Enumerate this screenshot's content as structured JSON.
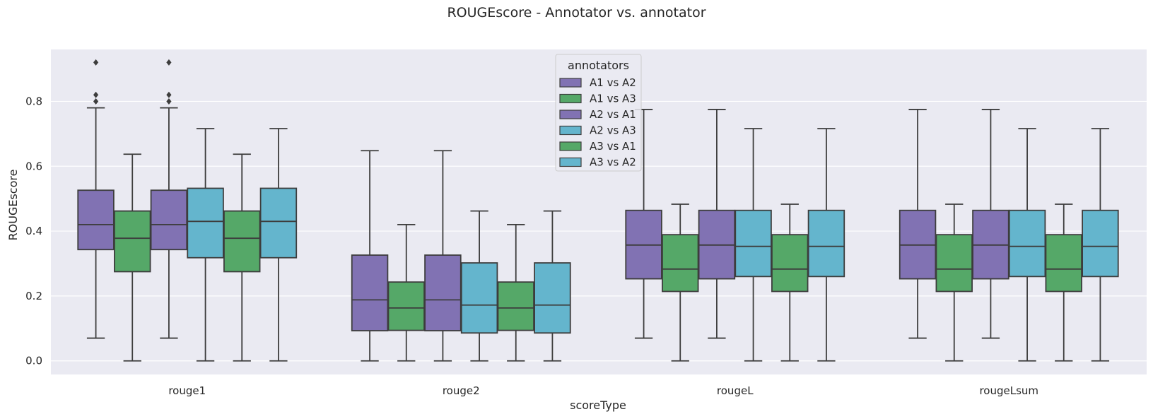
{
  "chart_data": {
    "type": "box",
    "title": "ROUGEscore - Annotator vs. annotator",
    "xlabel": "scoreType",
    "ylabel": "ROUGEscore",
    "ylim": [
      -0.042,
      0.96
    ],
    "yticks": [
      "0.0",
      "0.2",
      "0.4",
      "0.6",
      "0.8"
    ],
    "categories": [
      "rouge1",
      "rouge2",
      "rougeL",
      "rougeLsum"
    ],
    "grid": true,
    "legend": {
      "title": "annotators",
      "placement": "top-center",
      "entries": [
        "A1 vs A2",
        "A1 vs A3",
        "A2 vs A1",
        "A2 vs A3",
        "A3 vs A1",
        "A3 vs A2"
      ]
    },
    "series": [
      {
        "name": "A1 vs A2",
        "color": "#8172b3",
        "boxes": [
          {
            "whisker_low": 0.07,
            "q1": 0.343,
            "median": 0.42,
            "q3": 0.526,
            "whisker_high": 0.78,
            "outliers": [
              0.8,
              0.82,
              0.92
            ]
          },
          {
            "whisker_low": 0.0,
            "q1": 0.093,
            "median": 0.188,
            "q3": 0.326,
            "whisker_high": 0.648,
            "outliers": []
          },
          {
            "whisker_low": 0.07,
            "q1": 0.253,
            "median": 0.357,
            "q3": 0.464,
            "whisker_high": 0.775,
            "outliers": []
          },
          {
            "whisker_low": 0.07,
            "q1": 0.253,
            "median": 0.357,
            "q3": 0.464,
            "whisker_high": 0.775,
            "outliers": []
          }
        ]
      },
      {
        "name": "A1 vs A3",
        "color": "#55a868",
        "boxes": [
          {
            "whisker_low": 0.0,
            "q1": 0.275,
            "median": 0.378,
            "q3": 0.462,
            "whisker_high": 0.637,
            "outliers": []
          },
          {
            "whisker_low": 0.0,
            "q1": 0.094,
            "median": 0.163,
            "q3": 0.243,
            "whisker_high": 0.42,
            "outliers": []
          },
          {
            "whisker_low": 0.0,
            "q1": 0.214,
            "median": 0.283,
            "q3": 0.389,
            "whisker_high": 0.483,
            "outliers": []
          },
          {
            "whisker_low": 0.0,
            "q1": 0.214,
            "median": 0.283,
            "q3": 0.389,
            "whisker_high": 0.483,
            "outliers": []
          }
        ]
      },
      {
        "name": "A2 vs A1",
        "color": "#8172b3",
        "boxes": [
          {
            "whisker_low": 0.07,
            "q1": 0.343,
            "median": 0.42,
            "q3": 0.526,
            "whisker_high": 0.78,
            "outliers": [
              0.8,
              0.82,
              0.92
            ]
          },
          {
            "whisker_low": 0.0,
            "q1": 0.093,
            "median": 0.188,
            "q3": 0.326,
            "whisker_high": 0.648,
            "outliers": []
          },
          {
            "whisker_low": 0.07,
            "q1": 0.253,
            "median": 0.357,
            "q3": 0.464,
            "whisker_high": 0.775,
            "outliers": []
          },
          {
            "whisker_low": 0.07,
            "q1": 0.253,
            "median": 0.357,
            "q3": 0.464,
            "whisker_high": 0.775,
            "outliers": []
          }
        ]
      },
      {
        "name": "A2 vs A3",
        "color": "#64b5cd",
        "boxes": [
          {
            "whisker_low": 0.0,
            "q1": 0.318,
            "median": 0.43,
            "q3": 0.532,
            "whisker_high": 0.716,
            "outliers": []
          },
          {
            "whisker_low": 0.0,
            "q1": 0.086,
            "median": 0.172,
            "q3": 0.302,
            "whisker_high": 0.462,
            "outliers": []
          },
          {
            "whisker_low": 0.0,
            "q1": 0.26,
            "median": 0.353,
            "q3": 0.464,
            "whisker_high": 0.716,
            "outliers": []
          },
          {
            "whisker_low": 0.0,
            "q1": 0.26,
            "median": 0.353,
            "q3": 0.464,
            "whisker_high": 0.716,
            "outliers": []
          }
        ]
      },
      {
        "name": "A3 vs A1",
        "color": "#55a868",
        "boxes": [
          {
            "whisker_low": 0.0,
            "q1": 0.275,
            "median": 0.378,
            "q3": 0.462,
            "whisker_high": 0.637,
            "outliers": []
          },
          {
            "whisker_low": 0.0,
            "q1": 0.094,
            "median": 0.163,
            "q3": 0.243,
            "whisker_high": 0.42,
            "outliers": []
          },
          {
            "whisker_low": 0.0,
            "q1": 0.214,
            "median": 0.283,
            "q3": 0.389,
            "whisker_high": 0.483,
            "outliers": []
          },
          {
            "whisker_low": 0.0,
            "q1": 0.214,
            "median": 0.283,
            "q3": 0.389,
            "whisker_high": 0.483,
            "outliers": []
          }
        ]
      },
      {
        "name": "A3 vs A2",
        "color": "#64b5cd",
        "boxes": [
          {
            "whisker_low": 0.0,
            "q1": 0.318,
            "median": 0.43,
            "q3": 0.532,
            "whisker_high": 0.716,
            "outliers": []
          },
          {
            "whisker_low": 0.0,
            "q1": 0.086,
            "median": 0.172,
            "q3": 0.302,
            "whisker_high": 0.462,
            "outliers": []
          },
          {
            "whisker_low": 0.0,
            "q1": 0.26,
            "median": 0.353,
            "q3": 0.464,
            "whisker_high": 0.716,
            "outliers": []
          },
          {
            "whisker_low": 0.0,
            "q1": 0.26,
            "median": 0.353,
            "q3": 0.464,
            "whisker_high": 0.716,
            "outliers": []
          }
        ]
      }
    ],
    "colors": {
      "plot_background": "#eaeaf2",
      "grid": "#ffffff",
      "box_edge": "#3d3d3d"
    }
  }
}
